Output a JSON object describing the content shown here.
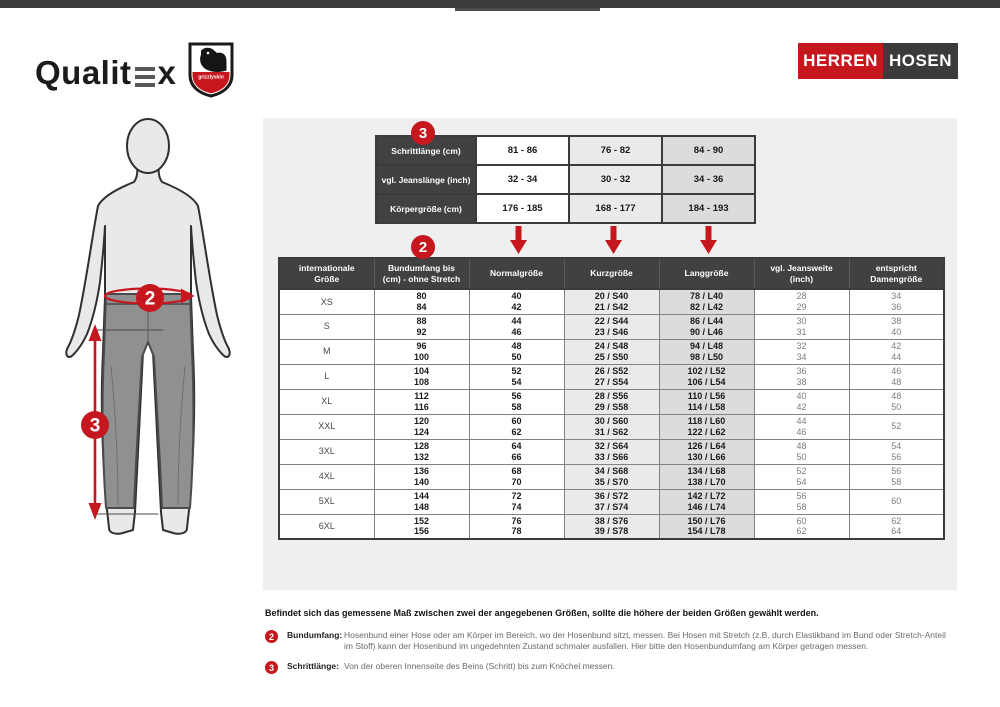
{
  "colors": {
    "accent_red": "#c6171e",
    "dark_gray": "#3b3b3d",
    "panel_bg": "#efefef",
    "kurz_col_bg": "#eaeaea",
    "lang_col_bg": "#dcdcdc"
  },
  "header": {
    "brand_left": "Qualit",
    "brand_right": "x",
    "shield_label": "grizzlyskin",
    "nav": [
      {
        "label": "HERREN"
      },
      {
        "label": "HOSEN"
      }
    ]
  },
  "figure": {
    "waist_badge": "2",
    "inseam_badge": "3"
  },
  "top_table": {
    "badge": "3",
    "rows": [
      {
        "label": "Schrittlänge (cm)",
        "values": [
          "81 - 86",
          "76 - 82",
          "84 - 90"
        ]
      },
      {
        "label": "vgl. Jeanslänge (inch)",
        "values": [
          "32 - 34",
          "30 - 32",
          "34 - 36"
        ]
      },
      {
        "label": "Körpergröße (cm)",
        "values": [
          "176 - 185",
          "168 - 177",
          "184 - 193"
        ]
      }
    ]
  },
  "main_table": {
    "badge": "2",
    "columns": [
      {
        "lines": [
          "internationale",
          "Größe"
        ]
      },
      {
        "lines": [
          "Bundumfang bis",
          "(cm) - ohne Stretch"
        ]
      },
      {
        "lines": [
          "Normalgröße"
        ]
      },
      {
        "lines": [
          "Kurzgröße"
        ]
      },
      {
        "lines": [
          "Langgröße"
        ]
      },
      {
        "lines": [
          "vgl. Jeansweite",
          "(inch)"
        ]
      },
      {
        "lines": [
          "entspricht",
          "Damengröße"
        ]
      }
    ],
    "rows": [
      {
        "size": "XS",
        "bund": [
          "80",
          "84"
        ],
        "normal": [
          "40",
          "42"
        ],
        "kurz": [
          "20 / S40",
          "21 / S42"
        ],
        "lang": [
          "78 / L40",
          "82 / L42"
        ],
        "jeans": [
          "28",
          "29"
        ],
        "damen": [
          "34",
          "36"
        ]
      },
      {
        "size": "S",
        "bund": [
          "88",
          "92"
        ],
        "normal": [
          "44",
          "46"
        ],
        "kurz": [
          "22 / S44",
          "23 / S46"
        ],
        "lang": [
          "86 / L44",
          "90 / L46"
        ],
        "jeans": [
          "30",
          "31"
        ],
        "damen": [
          "38",
          "40"
        ]
      },
      {
        "size": "M",
        "bund": [
          "96",
          "100"
        ],
        "normal": [
          "48",
          "50"
        ],
        "kurz": [
          "24 / S48",
          "25 / S50"
        ],
        "lang": [
          "94 / L48",
          "98 / L50"
        ],
        "jeans": [
          "32",
          "34"
        ],
        "damen": [
          "42",
          "44"
        ]
      },
      {
        "size": "L",
        "bund": [
          "104",
          "108"
        ],
        "normal": [
          "52",
          "54"
        ],
        "kurz": [
          "26 / S52",
          "27 / S54"
        ],
        "lang": [
          "102 / L52",
          "106 / L54"
        ],
        "jeans": [
          "36",
          "38"
        ],
        "damen": [
          "46",
          "48"
        ]
      },
      {
        "size": "XL",
        "bund": [
          "112",
          "116"
        ],
        "normal": [
          "56",
          "58"
        ],
        "kurz": [
          "28 / S56",
          "29 / S58"
        ],
        "lang": [
          "110 / L56",
          "114 / L58"
        ],
        "jeans": [
          "40",
          "42"
        ],
        "damen": [
          "48",
          "50"
        ]
      },
      {
        "size": "XXL",
        "bund": [
          "120",
          "124"
        ],
        "normal": [
          "60",
          "62"
        ],
        "kurz": [
          "30 / S60",
          "31 / S62"
        ],
        "lang": [
          "118 / L60",
          "122 / L62"
        ],
        "jeans": [
          "44",
          "46"
        ],
        "damen": [
          "52"
        ]
      },
      {
        "size": "3XL",
        "bund": [
          "128",
          "132"
        ],
        "normal": [
          "64",
          "66"
        ],
        "kurz": [
          "32 / S64",
          "33 / S66"
        ],
        "lang": [
          "126 / L64",
          "130 / L66"
        ],
        "jeans": [
          "48",
          "50"
        ],
        "damen": [
          "54",
          "56"
        ]
      },
      {
        "size": "4XL",
        "bund": [
          "136",
          "140"
        ],
        "normal": [
          "68",
          "70"
        ],
        "kurz": [
          "34 / S68",
          "35 / S70"
        ],
        "lang": [
          "134 / L68",
          "138 / L70"
        ],
        "jeans": [
          "52",
          "54"
        ],
        "damen": [
          "56",
          "58"
        ]
      },
      {
        "size": "5XL",
        "bund": [
          "144",
          "148"
        ],
        "normal": [
          "72",
          "74"
        ],
        "kurz": [
          "36 / S72",
          "37 / S74"
        ],
        "lang": [
          "142 / L72",
          "146 / L74"
        ],
        "jeans": [
          "56",
          "58"
        ],
        "damen": [
          "60"
        ]
      },
      {
        "size": "6XL",
        "bund": [
          "152",
          "156"
        ],
        "normal": [
          "76",
          "78"
        ],
        "kurz": [
          "38 / S76",
          "39 / S78"
        ],
        "lang": [
          "150 / L76",
          "154 / L78"
        ],
        "jeans": [
          "60",
          "62"
        ],
        "damen": [
          "62",
          "64"
        ]
      }
    ]
  },
  "notes": {
    "intro": "Befindet sich das gemessene Maß zwischen zwei der angegebenen Größen, sollte die höhere der beiden Größen gewählt werden.",
    "items": [
      {
        "badge": "2",
        "label": "Bundumfang:",
        "text": "Hosenbund einer Hose oder am Körper im Bereich, wo der Hosenbund sitzt, messen. Bei Hosen mit Stretch (z.B. durch Elastikband im Bund oder Stretch-Anteil im Stoff) kann der Hosenbund im ungedehnten Zustand schmaler ausfallen. Hier bitte den Hosenbundumfang am Körper getragen messen."
      },
      {
        "badge": "3",
        "label": "Schrittlänge:",
        "text": "Von der oberen Innenseite des Beins (Schritt) bis zum Knöchel messen."
      }
    ]
  }
}
